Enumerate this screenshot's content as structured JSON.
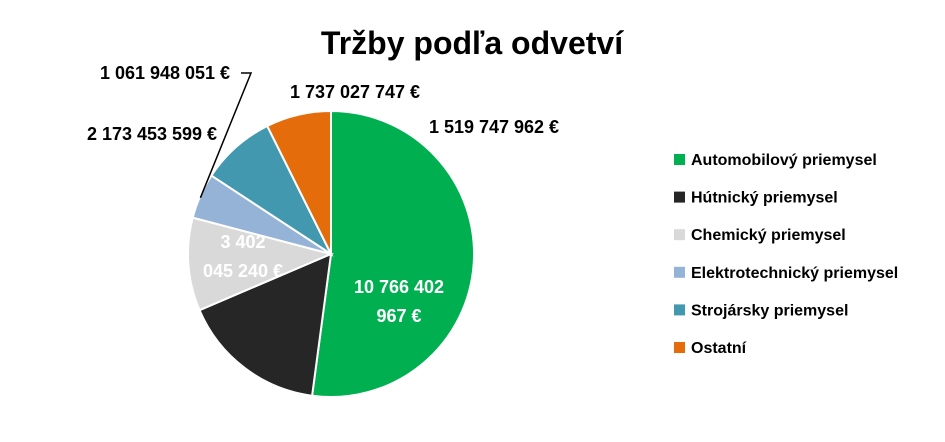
{
  "chart_data": {
    "type": "pie",
    "title": "Tržby podľa odvetví",
    "unit": "€",
    "start_angle_deg": 0,
    "direction": "clockwise",
    "legend_position": "right",
    "slices": [
      {
        "name": "Automobilový priemysel",
        "value": 10766402967,
        "label": "10 766 402 967 €",
        "color": "#00B050",
        "label_color": "#FFFFFF",
        "label_inside": true
      },
      {
        "name": "Hútnický priemysel",
        "value": 3402045240,
        "label": "3 402 045 240 €",
        "color": "#262626",
        "label_color": "#FFFFFF",
        "label_inside": true
      },
      {
        "name": "Chemický priemysel",
        "value": 2173453599,
        "label": "2 173 453 599 €",
        "color": "#D9D9D9",
        "label_color": "#000000",
        "label_inside": false
      },
      {
        "name": "Elektrotechnický priemysel",
        "value": 1061948051,
        "label": "1 061 948 051 €",
        "color": "#95B3D7",
        "label_color": "#000000",
        "label_inside": false
      },
      {
        "name": "Strojársky priemysel",
        "value": 1737027747,
        "label": "1 737 027 747 €",
        "color": "#4198AF",
        "label_color": "#000000",
        "label_inside": false
      },
      {
        "name": "Ostatní",
        "value": 1519747962,
        "label": "1 519 747 962 €",
        "color": "#E46C0A",
        "label_color": "#000000",
        "label_inside": false
      }
    ]
  }
}
